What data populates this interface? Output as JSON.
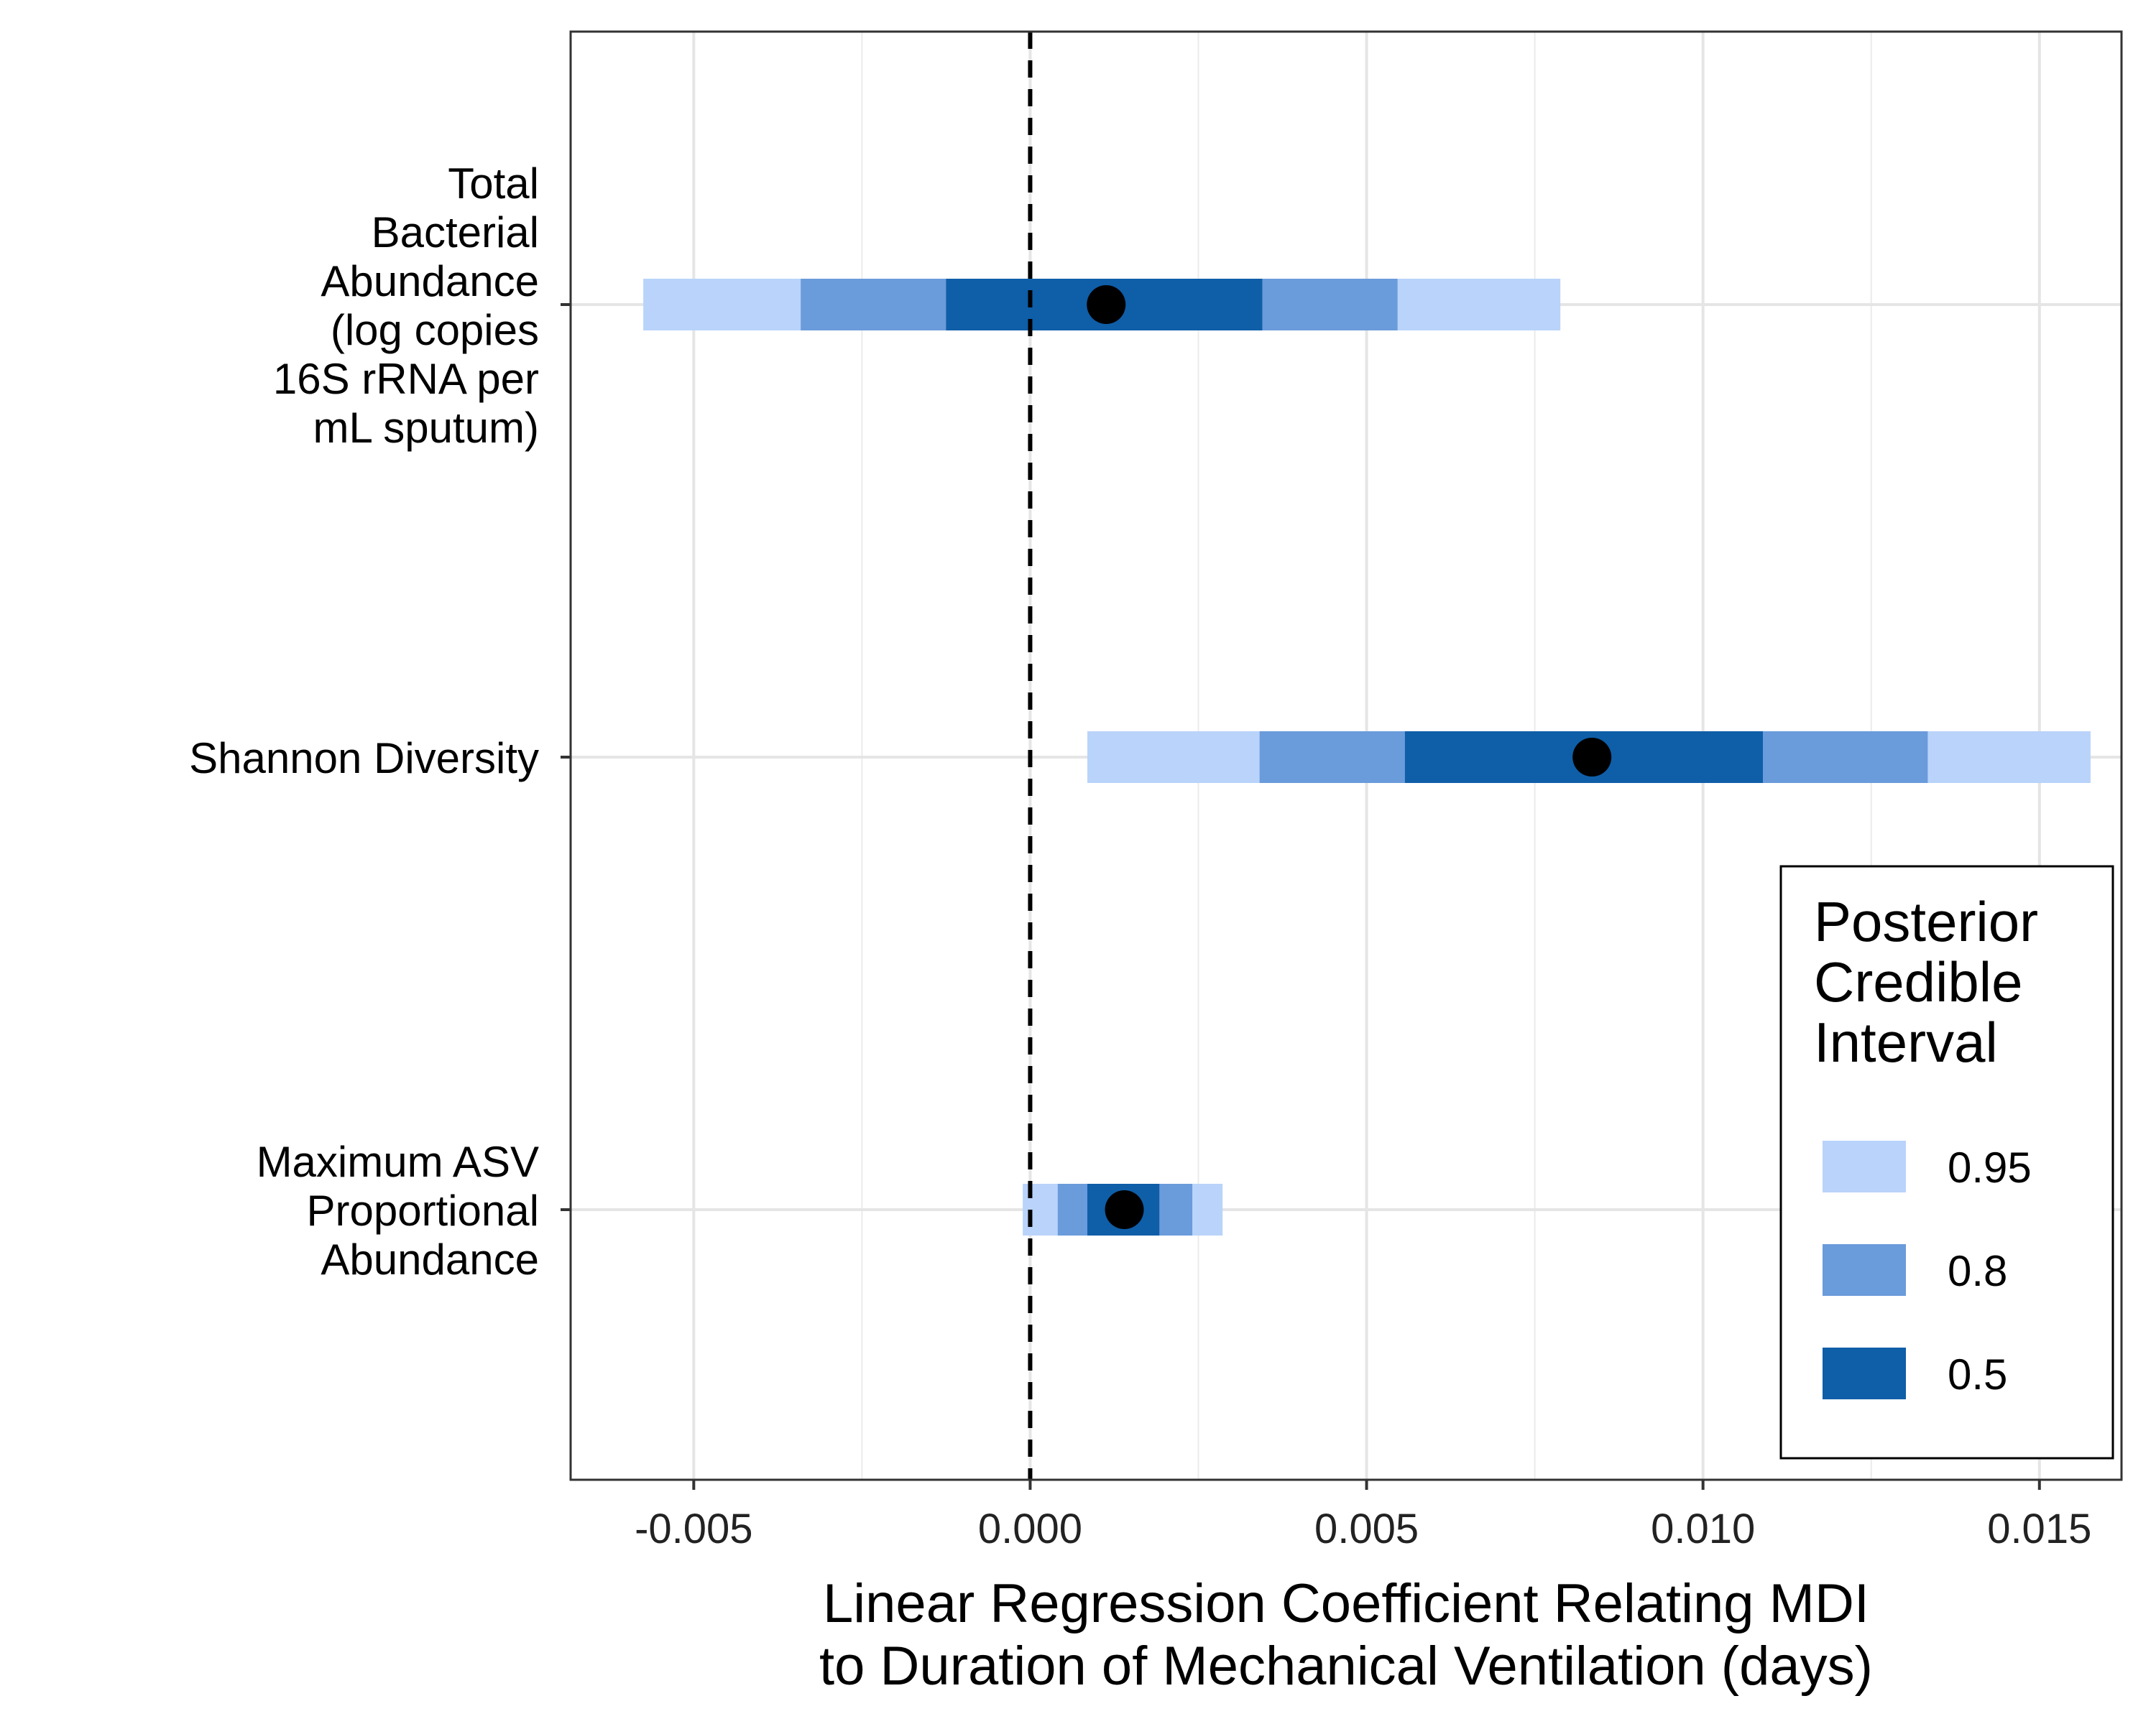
{
  "chart_data": {
    "type": "interval",
    "xlabel_line1": "Linear Regression Coefficient Relating MDI",
    "xlabel_line2": "to Duration of Mechanical Ventilation (days)",
    "ylabel": "",
    "xlim": [
      -0.00683,
      0.01622
    ],
    "x_ticks": [
      -0.005,
      0.0,
      0.005,
      0.01,
      0.015
    ],
    "x_tick_labels": [
      "-0.005",
      "0.000",
      "0.005",
      "0.010",
      "0.015"
    ],
    "x_minor_gridlines": [
      -0.0025,
      0.0025,
      0.0075,
      0.0125
    ],
    "reference_line": {
      "x": 0.0,
      "style": "dashed"
    },
    "grid": true,
    "categories": [
      {
        "label_lines": [
          "Total",
          "Bacterial",
          "Abundance",
          "(log copies",
          "16S rRNA per",
          "mL sputum)"
        ],
        "estimate": 0.00113,
        "intervals": {
          "0.95": [
            -0.00575,
            0.00788
          ],
          "0.8": [
            -0.00341,
            0.00546
          ],
          "0.5": [
            -0.00125,
            0.00345
          ]
        }
      },
      {
        "label_lines": [
          "Shannon Diversity"
        ],
        "estimate": 0.00835,
        "intervals": {
          "0.95": [
            0.00085,
            0.01576
          ],
          "0.8": [
            0.00341,
            0.01334
          ],
          "0.5": [
            0.00557,
            0.01089
          ]
        }
      },
      {
        "label_lines": [
          "Maximum ASV",
          "Proportional",
          "Abundance"
        ],
        "estimate": 0.0014,
        "intervals": {
          "0.95": [
            -0.00011,
            0.00286
          ],
          "0.8": [
            0.00041,
            0.00241
          ],
          "0.5": [
            0.00085,
            0.00192
          ]
        }
      }
    ],
    "legend": {
      "title_lines": [
        "Posterior",
        "Credible",
        "Interval"
      ],
      "placement": "right",
      "items": [
        {
          "label": "0.95",
          "color": "#b9d3fa"
        },
        {
          "label": "0.8",
          "color": "#6a9bdb"
        },
        {
          "label": "0.5",
          "color": "#0f5ea8"
        }
      ]
    },
    "colors": {
      "point": "#000000",
      "grid": "#e5e5e5",
      "panel_border": "#333333"
    }
  }
}
